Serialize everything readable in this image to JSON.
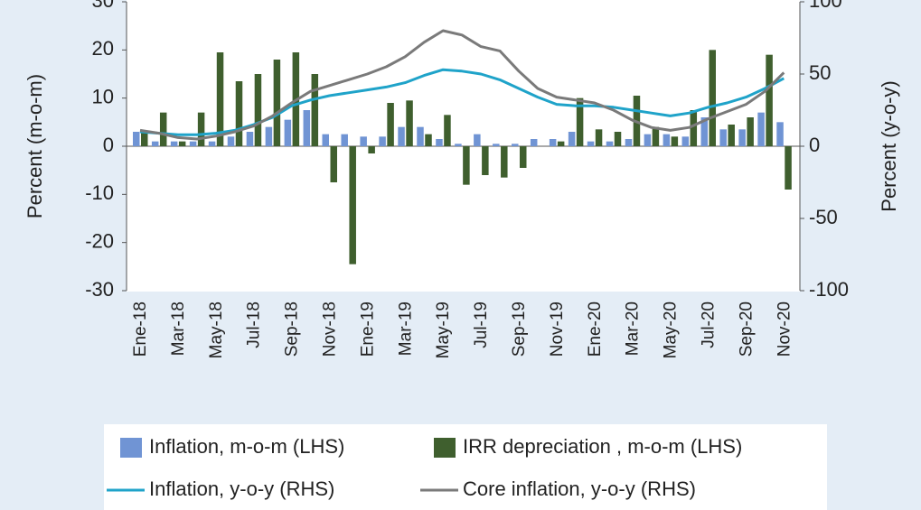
{
  "chart_data": {
    "type": "bar",
    "categories": [
      "Ene-18",
      null,
      "Mar-18",
      null,
      "May-18",
      null,
      "Jul-18",
      null,
      "Sep-18",
      null,
      "Nov-18",
      null,
      "Ene-19",
      null,
      "Mar-19",
      null,
      "May-19",
      null,
      "Jul-19",
      null,
      "Sep-19",
      null,
      "Nov-19",
      null,
      "Ene-20",
      null,
      "Mar-20",
      null,
      "May-20",
      null,
      "Jul-20",
      null,
      "Sep-20",
      null,
      "Nov-20"
    ],
    "y_label": "Percent (m-o-m)",
    "y2_label": "Percent (y-o-y)",
    "ylim": [
      -30,
      30
    ],
    "yticks": [
      -30,
      -20,
      -10,
      0,
      10,
      20,
      30
    ],
    "y2lim": [
      -100,
      100
    ],
    "y2ticks": [
      -100,
      -50,
      0,
      50,
      100
    ],
    "grid": false,
    "legend": "bottom",
    "series": [
      {
        "name": "Inflation, m-o-m (LHS)",
        "type": "bar",
        "color": "#7094d4",
        "values": [
          3,
          1,
          1,
          1,
          1,
          2,
          3,
          4,
          5.5,
          7.5,
          2.5,
          2.5,
          2,
          2,
          4,
          4,
          1.5,
          0.5,
          2.5,
          0.5,
          0.5,
          1.5,
          1.5,
          3,
          1,
          1,
          1.5,
          2.5,
          2.5,
          2,
          6,
          3.5,
          3.5,
          7,
          5
        ]
      },
      {
        "name": "IRR depreciation , m-o-m (LHS)",
        "type": "bar",
        "color": "#3f5f2e",
        "values": [
          3,
          7,
          1,
          7,
          19.5,
          13.5,
          15,
          18,
          19.5,
          15,
          -7.5,
          -24.5,
          -1.5,
          9,
          9.5,
          2.5,
          6.5,
          -8,
          -6,
          -6.5,
          -4.5,
          0,
          1,
          10,
          3.5,
          3,
          10.5,
          4,
          2,
          7.5,
          20,
          4.5,
          6,
          19,
          -9
        ]
      },
      {
        "name": "Inflation, y-o-y (RHS)",
        "type": "line",
        "axis": "y2",
        "color": "#1fa3c9",
        "values": [
          10,
          9,
          8,
          8,
          9,
          11,
          15,
          20,
          28,
          32,
          35,
          37,
          39,
          41,
          44,
          49,
          53,
          52,
          50,
          46,
          40,
          34,
          29,
          28,
          28,
          27,
          25,
          23,
          21,
          23,
          27,
          30,
          34,
          40,
          47
        ]
      },
      {
        "name": "Core inflation, y-o-y (RHS)",
        "type": "line",
        "axis": "y2",
        "color": "#7a7a7a",
        "values": [
          11,
          9,
          6,
          5,
          7,
          10,
          14,
          21,
          30,
          38,
          42,
          46,
          50,
          55,
          62,
          72,
          80,
          77,
          69,
          66,
          52,
          40,
          34,
          32,
          30,
          25,
          18,
          13,
          11,
          13,
          19,
          24,
          29,
          38,
          51
        ]
      }
    ]
  }
}
